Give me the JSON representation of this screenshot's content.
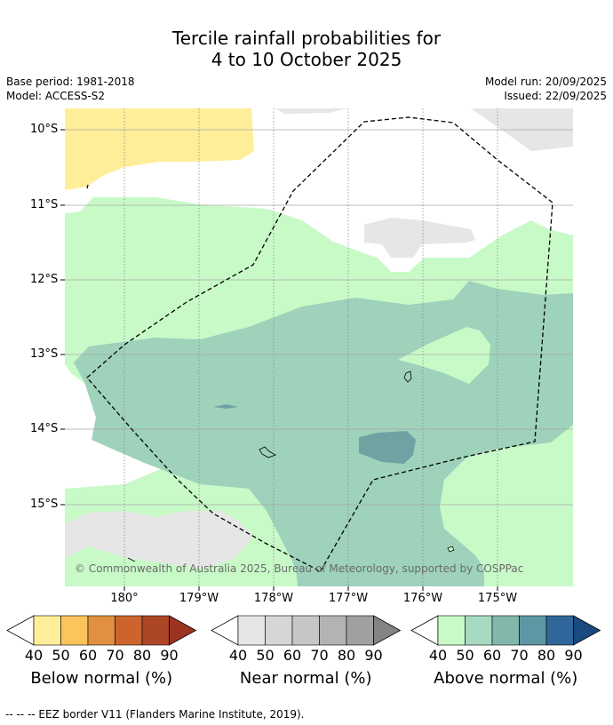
{
  "title": {
    "line1": "Tercile rainfall probabilities for",
    "line2": "4 to 10 October 2025"
  },
  "info": {
    "base_period": "Base period: 1981-2018",
    "model": "Model: ACCESS-S2",
    "model_run": "Model run: 20/09/2025",
    "issued": "Issued: 22/09/2025"
  },
  "map": {
    "latitude_labels": [
      "10°S",
      "11°S",
      "12°S",
      "13°S",
      "14°S",
      "15°S"
    ],
    "longitude_labels": [
      "180°",
      "179°W",
      "178°W",
      "177°W",
      "176°W",
      "175°W"
    ],
    "copyright": "© Commonwealth of Australia 2025, Bureau of Meteorology, supported by COSPPac",
    "colors": {
      "below_40": "#ffee99",
      "near_40": "#e6e6e6",
      "above_40": "#c8fac8",
      "above_50": "#9ed2bb",
      "above_60": "#6fa3a3",
      "eez_line": "#000000"
    }
  },
  "colorbars": [
    {
      "title": "Below normal (%)",
      "ticks": [
        "40",
        "50",
        "60",
        "70",
        "80",
        "90"
      ],
      "colors": [
        "#ffee99",
        "#fcc45c",
        "#e09040",
        "#cd6430",
        "#ad4625",
        "#9e3323"
      ]
    },
    {
      "title": "Near normal (%)",
      "ticks": [
        "40",
        "50",
        "60",
        "70",
        "80",
        "90"
      ],
      "colors": [
        "#e6e6e6",
        "#d6d6d6",
        "#c6c6c6",
        "#b3b3b3",
        "#a0a0a0",
        "#848484"
      ]
    },
    {
      "title": "Above normal (%)",
      "ticks": [
        "40",
        "50",
        "60",
        "70",
        "80",
        "90"
      ],
      "colors": [
        "#c8fac8",
        "#a7dbc1",
        "#82b8ac",
        "#5d97a3",
        "#306699",
        "#1a4a7f"
      ]
    }
  ],
  "footer": "--  --  -- EEZ border V11 (Flanders Marine Institute, 2019)."
}
